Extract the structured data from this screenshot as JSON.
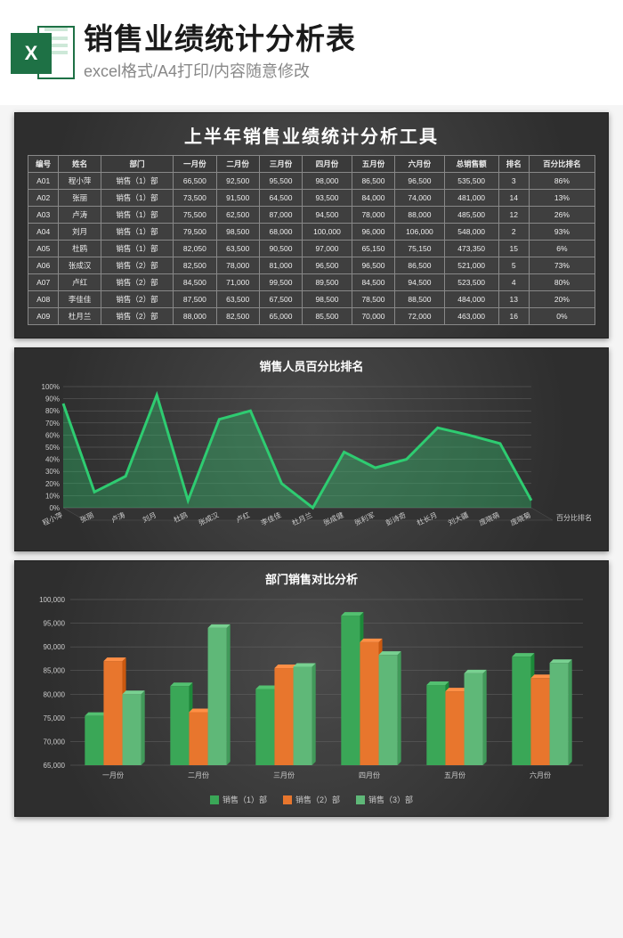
{
  "header": {
    "icon_letter": "X",
    "title": "销售业绩统计分析表",
    "subtitle": "excel格式/A4打印/内容随意修改"
  },
  "sheet_title": "上半年销售业绩统计分析工具",
  "table": {
    "columns": [
      "编号",
      "姓名",
      "部门",
      "一月份",
      "二月份",
      "三月份",
      "四月份",
      "五月份",
      "六月份",
      "总销售额",
      "排名",
      "百分比排名"
    ],
    "rows": [
      [
        "A01",
        "程小萍",
        "销售（1）部",
        "66,500",
        "92,500",
        "95,500",
        "98,000",
        "86,500",
        "96,500",
        "535,500",
        "3",
        "86%"
      ],
      [
        "A02",
        "张丽",
        "销售（1）部",
        "73,500",
        "91,500",
        "64,500",
        "93,500",
        "84,000",
        "74,000",
        "481,000",
        "14",
        "13%"
      ],
      [
        "A03",
        "卢涛",
        "销售（1）部",
        "75,500",
        "62,500",
        "87,000",
        "94,500",
        "78,000",
        "88,000",
        "485,500",
        "12",
        "26%"
      ],
      [
        "A04",
        "刘月",
        "销售（1）部",
        "79,500",
        "98,500",
        "68,000",
        "100,000",
        "96,000",
        "106,000",
        "548,000",
        "2",
        "93%"
      ],
      [
        "A05",
        "杜鸥",
        "销售（1）部",
        "82,050",
        "63,500",
        "90,500",
        "97,000",
        "65,150",
        "75,150",
        "473,350",
        "15",
        "6%"
      ],
      [
        "A06",
        "张成汉",
        "销售（2）部",
        "82,500",
        "78,000",
        "81,000",
        "96,500",
        "96,500",
        "86,500",
        "521,000",
        "5",
        "73%"
      ],
      [
        "A07",
        "卢红",
        "销售（2）部",
        "84,500",
        "71,000",
        "99,500",
        "89,500",
        "84,500",
        "94,500",
        "523,500",
        "4",
        "80%"
      ],
      [
        "A08",
        "李佳佳",
        "销售（2）部",
        "87,500",
        "63,500",
        "67,500",
        "98,500",
        "78,500",
        "88,500",
        "484,000",
        "13",
        "20%"
      ],
      [
        "A09",
        "杜月兰",
        "销售（2）部",
        "88,000",
        "82,500",
        "65,000",
        "85,500",
        "70,000",
        "72,000",
        "463,000",
        "16",
        "0%"
      ]
    ]
  },
  "line_chart": {
    "title": "销售人员百分比排名",
    "type": "line",
    "categories": [
      "程小萍",
      "张丽",
      "卢涛",
      "刘月",
      "杜鸥",
      "张成汉",
      "卢红",
      "李佳佳",
      "杜月兰",
      "张成健",
      "张利军",
      "彭诗奇",
      "杜长月",
      "刘大疆",
      "庞晓萌",
      "庞晓菊"
    ],
    "values": [
      86,
      13,
      26,
      93,
      6,
      73,
      80,
      20,
      0,
      46,
      33,
      40,
      66,
      60,
      53,
      6
    ],
    "series_label": "百分比排名",
    "ylim": [
      0,
      100
    ],
    "ytick_step": 10,
    "line_color": "#2ecc71",
    "fill_color": "rgba(46,204,113,0.35)",
    "grid_color": "#666666",
    "label_color": "#cccccc",
    "background": "#3a3a3a"
  },
  "bar_chart": {
    "title": "部门销售对比分析",
    "type": "bar",
    "categories": [
      "一月份",
      "二月份",
      "三月份",
      "四月份",
      "五月份",
      "六月份"
    ],
    "series": [
      {
        "name": "销售（1）部",
        "color": "#3aa757",
        "values": [
          75410,
          81700,
          81100,
          96600,
          81930,
          87930
        ]
      },
      {
        "name": "销售（2）部",
        "color": "#e8762d",
        "values": [
          87000,
          76200,
          85500,
          91000,
          80600,
          83400
        ]
      },
      {
        "name": "销售（3）部",
        "color": "#5fb878",
        "values": [
          80000,
          94000,
          85800,
          88300,
          84400,
          86600
        ]
      }
    ],
    "ylim": [
      65000,
      100000
    ],
    "ytick_step": 5000,
    "grid_color": "#666666",
    "label_color": "#cccccc",
    "background": "#3a3a3a",
    "bar_width": 0.22
  }
}
